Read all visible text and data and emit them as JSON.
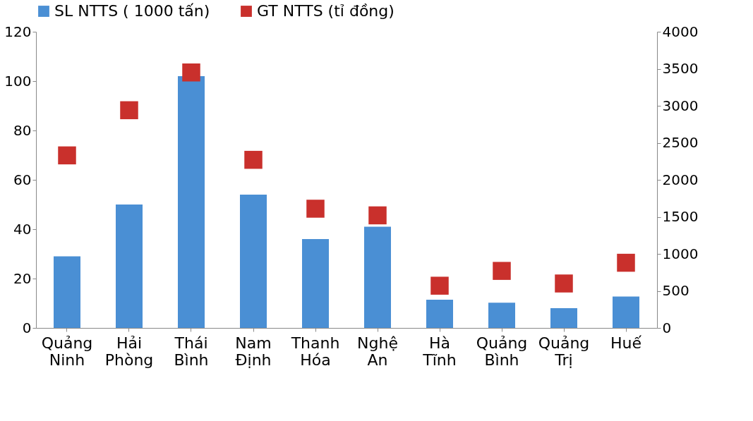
{
  "chart_data": {
    "type": "bar",
    "categories": [
      "Quảng Ninh",
      "Hải Phòng",
      "Thái Bình",
      "Nam Định",
      "Thanh Hóa",
      "Nghệ An",
      "Hà Tĩnh",
      "Quảng Bình",
      "Quảng Trị",
      "Huế"
    ],
    "series": [
      {
        "name": "SL NTTS ( 1000 tấn)",
        "color": "#4a8fd4",
        "values": [
          29,
          50,
          102,
          54,
          36,
          41,
          11.4,
          10.2,
          8,
          12.7
        ]
      },
      {
        "name": "GT NTTS (tỉ đồng)",
        "type": "scatter",
        "axis": "y2",
        "color": "#c9302c",
        "values": [
          2330,
          2940,
          3450,
          2270,
          1610,
          1520,
          570,
          770,
          600,
          880
        ]
      }
    ],
    "ylim": [
      0,
      120
    ],
    "yticks": [
      0,
      20,
      40,
      60,
      80,
      100,
      120
    ],
    "y2lim": [
      0,
      4000
    ],
    "y2ticks": [
      0,
      500,
      1000,
      1500,
      2000,
      2500,
      3000,
      3500,
      4000
    ],
    "legend": "top",
    "grid": false,
    "marker": "square"
  }
}
